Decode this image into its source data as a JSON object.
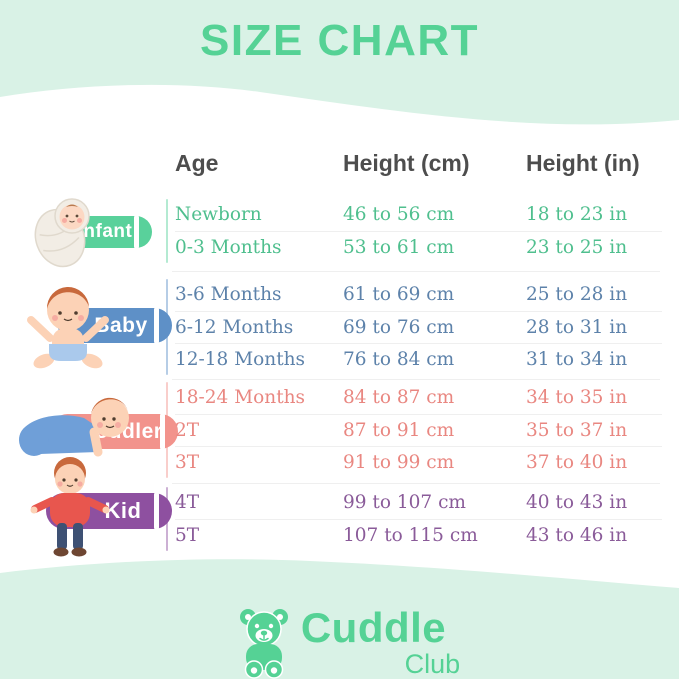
{
  "title": "SIZE CHART",
  "chart_data": {
    "type": "table",
    "title": "SIZE CHART",
    "columns": [
      "Age",
      "Height (cm)",
      "Height (in)"
    ],
    "groups": [
      {
        "label": "Infant",
        "badge_color": "#59d19b",
        "text_color": "#4fbf8e",
        "rows": [
          [
            "Newborn",
            "46 to 56 cm",
            "18 to 23 in"
          ],
          [
            "0-3 Months",
            "53 to 61 cm",
            "23 to 25 in"
          ]
        ]
      },
      {
        "label": "Baby",
        "badge_color": "#5e90c7",
        "text_color": "#5d82aa",
        "rows": [
          [
            "3-6 Months",
            "61 to 69 cm",
            "25 to 28 in"
          ],
          [
            "6-12 Months",
            "69 to 76 cm",
            "28 to 31 in"
          ],
          [
            "12-18 Months",
            "76 to 84 cm",
            "31 to 34 in"
          ]
        ]
      },
      {
        "label": "Toddler",
        "badge_color": "#f2938c",
        "text_color": "#e98781",
        "rows": [
          [
            "18-24 Months",
            "84 to 87 cm",
            "34 to 35 in"
          ],
          [
            "2T",
            "87 to 91 cm",
            "35 to 37 in"
          ],
          [
            "3T",
            "91 to 99 cm",
            "37 to 40 in"
          ]
        ]
      },
      {
        "label": "Kid",
        "badge_color": "#8e50a0",
        "text_color": "#8a5b99",
        "rows": [
          [
            "4T",
            "99 to 107 cm",
            "40 to 43 in"
          ],
          [
            "5T",
            "107 to 115 cm",
            "43 to 46 in"
          ]
        ]
      }
    ]
  },
  "brand": {
    "name": "Cuddle",
    "suffix": "Club",
    "icon": "teddy-bear-icon"
  },
  "colors": {
    "background_mint": "#d9f2e6",
    "title_green": "#55d295",
    "header_text": "#4d4d4d",
    "brand_green": "#55d295"
  }
}
